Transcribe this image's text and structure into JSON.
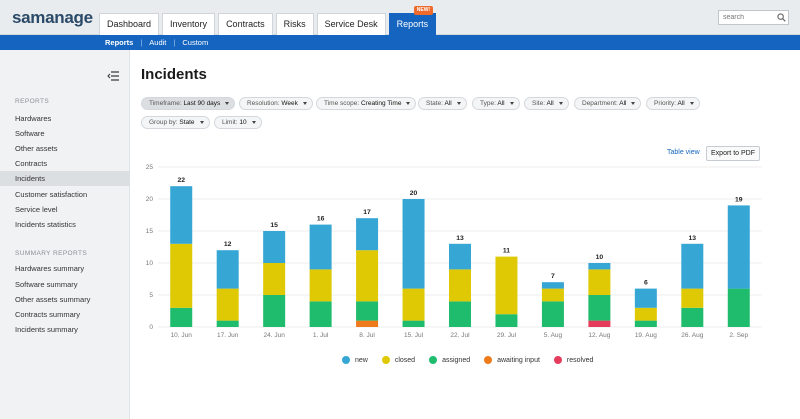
{
  "app": {
    "logo": "samanage"
  },
  "nav": {
    "tabs": [
      {
        "label": "Dashboard",
        "name": "tab-dashboard"
      },
      {
        "label": "Inventory",
        "name": "tab-inventory"
      },
      {
        "label": "Contracts",
        "name": "tab-contracts"
      },
      {
        "label": "Risks",
        "name": "tab-risks"
      },
      {
        "label": "Service Desk",
        "name": "tab-service-desk"
      },
      {
        "label": "Reports",
        "name": "tab-reports"
      }
    ],
    "new_badge": "NEW!",
    "search_placeholder": "search"
  },
  "subnav": {
    "items": [
      "Reports",
      "Audit",
      "Custom"
    ]
  },
  "sidebar": {
    "section1": "REPORTS",
    "items": [
      "Hardwares",
      "Software",
      "Other assets",
      "Contracts",
      "Incidents",
      "Customer satisfaction",
      "Service level",
      "Incidents statistics"
    ],
    "section2": "SUMMARY REPORTS",
    "summary_items": [
      "Hardwares summary",
      "Software summary",
      "Other assets summary",
      "Contracts summary",
      "Incidents summary"
    ]
  },
  "page": {
    "title": "Incidents"
  },
  "filters": [
    {
      "label": "Timeframe:",
      "value": "Last 90 days"
    },
    {
      "label": "Resolution:",
      "value": "Week"
    },
    {
      "label": "Time scope:",
      "value": "Creating Time"
    },
    {
      "label": "State:",
      "value": "All"
    },
    {
      "label": "Type:",
      "value": "All"
    },
    {
      "label": "Site:",
      "value": "All"
    },
    {
      "label": "Department:",
      "value": "All"
    },
    {
      "label": "Priority:",
      "value": "All"
    },
    {
      "label": "Group by:",
      "value": "State"
    },
    {
      "label": "Limit:",
      "value": "10"
    }
  ],
  "actions": {
    "table_view": "Table view",
    "export": "Export to PDF"
  },
  "colors": {
    "new": "#36a6d4",
    "closed": "#dfc904",
    "assigned": "#1fbc6d",
    "awaiting_input": "#ee7a1c",
    "resolved": "#e63c5c",
    "primary": "#1565c0"
  },
  "chart_data": {
    "type": "bar",
    "stacked": true,
    "categories": [
      "10. Jun",
      "17. Jun",
      "24. Jun",
      "1. Jul",
      "8. Jul",
      "15. Jul",
      "22. Jul",
      "29. Jul",
      "5. Aug",
      "12. Aug",
      "19. Aug",
      "26. Aug",
      "2. Sep"
    ],
    "totals": [
      22,
      12,
      15,
      16,
      17,
      20,
      13,
      11,
      7,
      10,
      6,
      13,
      19
    ],
    "series": [
      {
        "name": "new",
        "values": [
          9,
          6,
          5,
          7,
          5,
          14,
          4,
          0,
          1,
          1,
          3,
          7,
          13
        ]
      },
      {
        "name": "closed",
        "values": [
          10,
          5,
          5,
          5,
          8,
          5,
          5,
          9,
          2,
          4,
          2,
          3,
          0
        ]
      },
      {
        "name": "assigned",
        "values": [
          3,
          1,
          5,
          4,
          3,
          1,
          4,
          2,
          4,
          4,
          1,
          3,
          6
        ]
      },
      {
        "name": "awaiting input",
        "values": [
          0,
          0,
          0,
          0,
          1,
          0,
          0,
          0,
          0,
          0,
          0,
          0,
          0
        ]
      },
      {
        "name": "resolved",
        "values": [
          0,
          0,
          0,
          0,
          0,
          0,
          0,
          0,
          0,
          1,
          0,
          0,
          0
        ]
      }
    ],
    "yticks": [
      0,
      5,
      10,
      15,
      20,
      25
    ],
    "ylim": [
      0,
      25
    ],
    "grid": true,
    "legend": "bottom"
  }
}
